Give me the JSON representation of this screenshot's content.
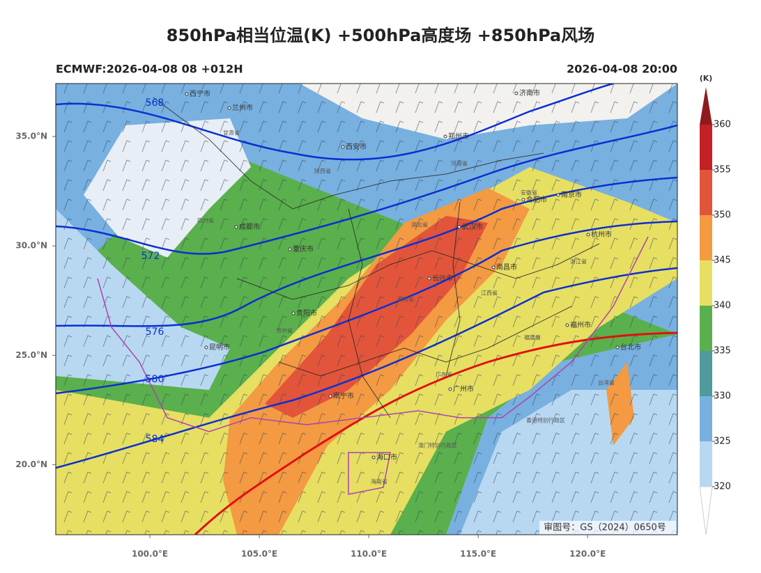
{
  "header": {
    "title": "850hPa相当位温(K) +500hPa高度场 +850hPa风场",
    "left": "ECMWF:2026-04-08 08 +012H",
    "right": "2026-04-08 20:00"
  },
  "map": {
    "xlim": [
      95.7,
      124.1
    ],
    "ylim": [
      16.8,
      37.42
    ],
    "xticks": [
      {
        "value": 100,
        "label": "100.0°E"
      },
      {
        "value": 105,
        "label": "105.0°E"
      },
      {
        "value": 110,
        "label": "110.0°E"
      },
      {
        "value": 115,
        "label": "115.0°E"
      },
      {
        "value": 120,
        "label": "120.0°E"
      }
    ],
    "yticks": [
      {
        "value": 20,
        "label": "20.0°N"
      },
      {
        "value": 25,
        "label": "25.0°N"
      },
      {
        "value": 30,
        "label": "30.0°N"
      },
      {
        "value": 35,
        "label": "35.0°N"
      }
    ],
    "contour_labels": [
      "568",
      "572",
      "576",
      "580",
      "584"
    ],
    "cities": [
      "西宁市",
      "兰州市",
      "西安市",
      "郑州市",
      "济南市",
      "合肥市",
      "南京市",
      "杭州市",
      "武汉市",
      "长沙市",
      "南昌市",
      "福州市",
      "台北市",
      "成都市",
      "重庆市",
      "贵阳市",
      "昆明市",
      "南宁市",
      "广州市",
      "海口市"
    ],
    "provinces": [
      "湖南省",
      "江西省",
      "湖北省",
      "广东省",
      "福建省",
      "浙江省",
      "贵州省",
      "四川省",
      "安徽省",
      "河南省",
      "陕西省",
      "甘肃省",
      "台湾省",
      "海南省",
      "香港特别行政区",
      "澳门特别行政区"
    ],
    "approval": "审图号：GS（2024）0650号"
  },
  "colorbar": {
    "unit": "(K)",
    "ticks": [
      320,
      325,
      330,
      335,
      340,
      345,
      350,
      355,
      360
    ],
    "colors": [
      "#b8d8f2",
      "#78b0e0",
      "#4e9a9c",
      "#5ab04c",
      "#e6df62",
      "#f39a42",
      "#e2553a",
      "#c42026"
    ]
  }
}
